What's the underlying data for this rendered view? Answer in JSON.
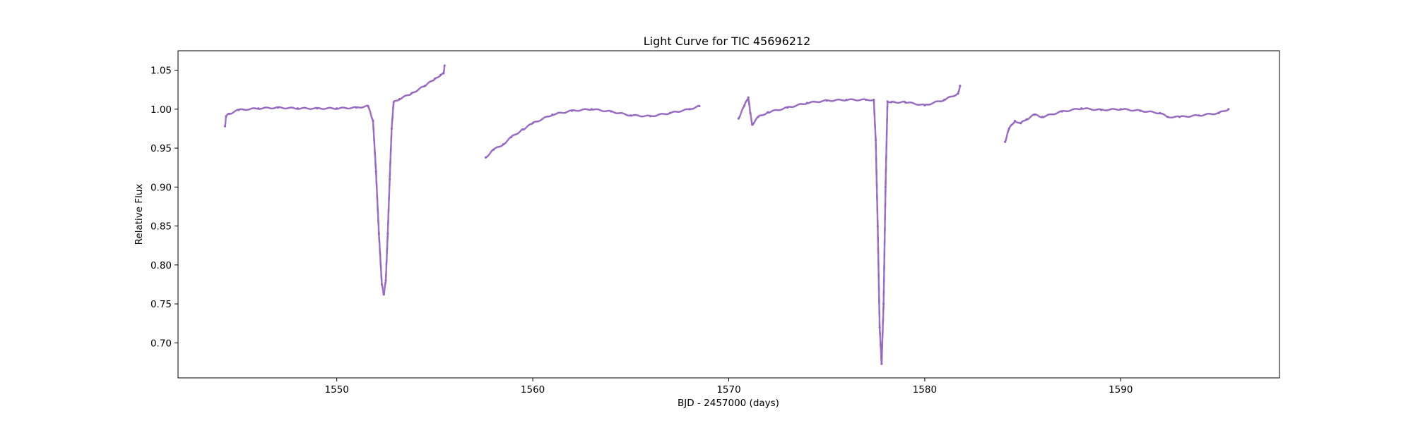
{
  "chart_data": {
    "type": "scatter",
    "title": "Light Curve for TIC 45696212",
    "xlabel": "BJD - 2457000 (days)",
    "ylabel": "Relative Flux",
    "xlim": [
      1541.9,
      1598.1
    ],
    "ylim": [
      0.655,
      1.075
    ],
    "xticks": [
      1550,
      1560,
      1570,
      1580,
      1590
    ],
    "yticks": [
      0.7,
      0.75,
      0.8,
      0.85,
      0.9,
      0.95,
      1.0,
      1.05
    ],
    "ytick_labels": [
      "0.70",
      "0.75",
      "0.80",
      "0.85",
      "0.90",
      "0.95",
      "1.00",
      "1.05"
    ],
    "grid": false,
    "legend": false,
    "marker_color": "#9467bd",
    "series": [
      {
        "x": [
          1544.3,
          1544.35,
          1544.5,
          1545.0,
          1546.0,
          1547.0,
          1548.0,
          1549.0,
          1550.0,
          1551.0,
          1551.6,
          1551.85,
          1552.0,
          1552.15,
          1552.3,
          1552.4,
          1552.5,
          1552.6,
          1552.7,
          1552.8,
          1552.9,
          1553.2,
          1553.8,
          1554.5,
          1555.0,
          1555.3,
          1555.45,
          1555.5
        ],
        "y": [
          0.978,
          0.991,
          0.994,
          0.999,
          1.001,
          1.002,
          1.001,
          1.001,
          1.001,
          1.002,
          1.004,
          0.985,
          0.92,
          0.84,
          0.775,
          0.762,
          0.78,
          0.84,
          0.91,
          0.975,
          1.009,
          1.013,
          1.02,
          1.03,
          1.039,
          1.044,
          1.046,
          1.056
        ]
      },
      {
        "x": [
          1557.6,
          1558.0,
          1558.5,
          1558.9,
          1559.5,
          1560.0,
          1561.0,
          1562.0,
          1563.0,
          1564.0,
          1565.0,
          1566.0,
          1567.0,
          1568.0,
          1568.5
        ],
        "y": [
          0.938,
          0.948,
          0.955,
          0.964,
          0.974,
          0.982,
          0.993,
          0.998,
          1.0,
          0.997,
          0.992,
          0.991,
          0.995,
          1.0,
          1.004
        ]
      },
      {
        "x": [
          1570.5,
          1570.8,
          1571.0,
          1571.1,
          1571.2,
          1571.5,
          1572.0,
          1573.0,
          1574.0,
          1575.0,
          1576.0,
          1577.0,
          1577.4,
          1577.5,
          1577.6,
          1577.7,
          1577.8,
          1577.9,
          1578.0,
          1578.1,
          1578.3,
          1579.0,
          1580.0,
          1581.0,
          1581.7,
          1581.8
        ],
        "y": [
          0.988,
          1.005,
          1.015,
          0.995,
          0.98,
          0.99,
          0.996,
          1.002,
          1.008,
          1.011,
          1.012,
          1.012,
          1.012,
          0.96,
          0.85,
          0.72,
          0.673,
          0.75,
          0.9,
          1.01,
          1.009,
          1.009,
          1.005,
          1.012,
          1.02,
          1.03
        ]
      },
      {
        "x": [
          1584.1,
          1584.3,
          1584.6,
          1584.9,
          1585.2,
          1585.6,
          1586.0,
          1587.0,
          1588.0,
          1589.0,
          1590.0,
          1591.0,
          1592.0,
          1592.4,
          1593.0,
          1594.0,
          1595.0,
          1595.5
        ],
        "y": [
          0.958,
          0.975,
          0.985,
          0.982,
          0.987,
          0.993,
          0.99,
          0.997,
          1.001,
          0.999,
          1.0,
          0.998,
          0.995,
          0.99,
          0.99,
          0.992,
          0.995,
          1.0
        ]
      }
    ]
  }
}
